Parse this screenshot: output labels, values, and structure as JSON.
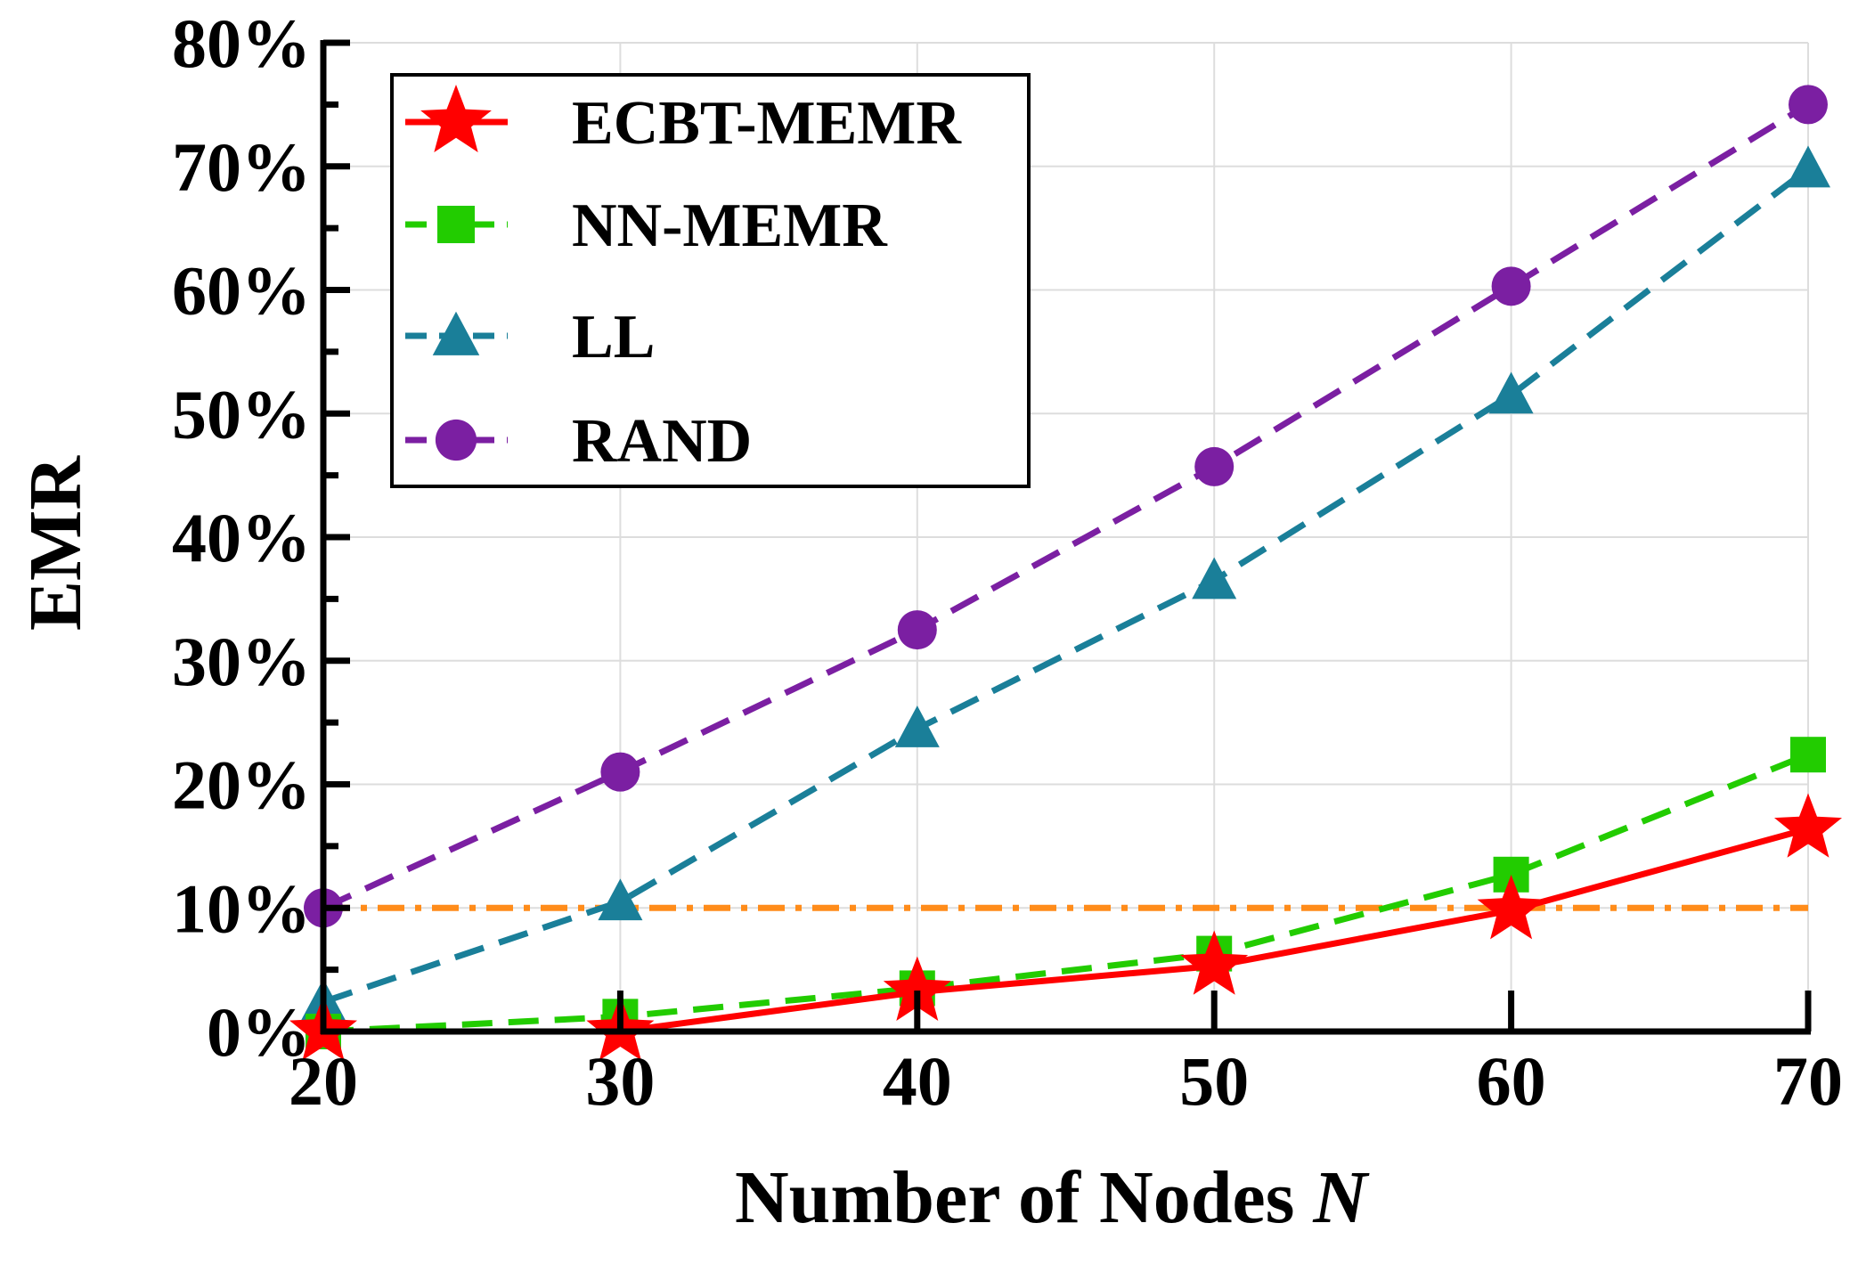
{
  "chart_data": {
    "type": "line",
    "title": "",
    "xlabel": "Number of Nodes",
    "xlabel_var": "N",
    "ylabel": "EMR",
    "x": [
      20,
      30,
      40,
      50,
      60,
      70
    ],
    "xlim": [
      20,
      70
    ],
    "ylim": [
      0,
      80
    ],
    "y_unit": "%",
    "x_tick_labels": [
      "20",
      "30",
      "40",
      "50",
      "60",
      "70"
    ],
    "y_tick_labels": [
      "0%",
      "10%",
      "20%",
      "30%",
      "40%",
      "50%",
      "60%",
      "70%",
      "80%"
    ],
    "grid": true,
    "legend_position": "top-left",
    "series": [
      {
        "name": "ECBT-MEMR",
        "values": [
          0,
          0,
          3.2,
          5.3,
          9.8,
          16.4
        ],
        "color": "#ff0000",
        "marker": "star",
        "line": "solid"
      },
      {
        "name": "NN-MEMR",
        "values": [
          0,
          1.2,
          3.5,
          6.3,
          12.7,
          22.4
        ],
        "color": "#22cc00",
        "marker": "square",
        "line": "dashed"
      },
      {
        "name": "LL",
        "values": [
          2.4,
          10.5,
          24.5,
          36.5,
          51.5,
          69.8
        ],
        "color": "#1a7f99",
        "marker": "triangle",
        "line": "dashed"
      },
      {
        "name": "RAND",
        "values": [
          10,
          21,
          32.5,
          45.7,
          60.3,
          75
        ],
        "color": "#7b1fa2",
        "marker": "circle",
        "line": "dashed"
      }
    ],
    "reference_line": {
      "value": 10,
      "color": "#ff8c1a",
      "style": "dash-dot"
    }
  }
}
